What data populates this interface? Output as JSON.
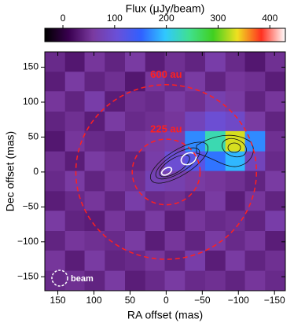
{
  "chart_data": {
    "type": "heatmap",
    "colorbar_label": "Flux (μJy/beam)",
    "clim": [
      -35,
      430
    ],
    "cticks": [
      0,
      100,
      200,
      300,
      400
    ],
    "colormap": [
      "#000000",
      "#3a0050",
      "#7a3aa0",
      "#6a50d8",
      "#3060ff",
      "#30c8ff",
      "#40e090",
      "#40d020",
      "#f0e020",
      "#ff3020",
      "#ffffff"
    ],
    "x_label": "RA offset (mas)",
    "y_label": "Dec offset (mas)",
    "xlim": [
      168,
      -165
    ],
    "ylim": [
      -170,
      172
    ],
    "xticks": [
      150,
      100,
      50,
      0,
      {
        "value": -50,
        "label": "−50"
      },
      {
        "value": -100,
        "label": "−100"
      },
      {
        "value": -150,
        "label": "−150"
      }
    ],
    "yticks": [
      {
        "value": -150,
        "label": "−150"
      },
      {
        "value": -100,
        "label": "−100"
      },
      {
        "value": -50,
        "label": "−50"
      },
      0,
      50,
      100,
      150
    ],
    "x": [
      154,
      126,
      99,
      71,
      43,
      15,
      -12,
      -40,
      -68,
      -96,
      -123,
      -151
    ],
    "y": [
      158,
      129,
      101,
      72,
      44,
      15,
      -13,
      -42,
      -70,
      -99,
      -127,
      -156
    ],
    "z": [
      [
        45,
        30,
        55,
        40,
        60,
        35,
        50,
        40,
        65,
        45,
        30,
        50
      ],
      [
        35,
        60,
        40,
        50,
        30,
        55,
        45,
        60,
        40,
        55,
        50,
        35
      ],
      [
        55,
        40,
        65,
        35,
        50,
        45,
        60,
        50,
        70,
        60,
        40,
        55
      ],
      [
        40,
        50,
        35,
        60,
        45,
        50,
        55,
        80,
        100,
        90,
        60,
        40
      ],
      [
        30,
        55,
        45,
        40,
        55,
        60,
        70,
        170,
        230,
        330,
        170,
        50
      ],
      [
        50,
        35,
        60,
        50,
        40,
        65,
        100,
        120,
        160,
        190,
        80,
        45
      ],
      [
        45,
        60,
        40,
        55,
        50,
        75,
        70,
        60,
        55,
        50,
        40,
        60
      ],
      [
        35,
        45,
        55,
        40,
        65,
        45,
        50,
        40,
        60,
        35,
        55,
        40
      ],
      [
        60,
        40,
        35,
        55,
        40,
        60,
        35,
        55,
        45,
        50,
        40,
        65
      ],
      [
        40,
        55,
        50,
        45,
        60,
        35,
        55,
        40,
        60,
        45,
        55,
        35
      ],
      [
        55,
        35,
        60,
        40,
        45,
        55,
        40,
        65,
        35,
        60,
        40,
        50
      ],
      [
        45,
        50,
        40,
        60,
        35,
        45,
        60,
        45,
        50,
        40,
        55,
        45
      ]
    ],
    "circles": [
      {
        "label": "600 au",
        "x": 0,
        "y": 0,
        "r": 125,
        "color": "#ff2020"
      },
      {
        "label": "225 au",
        "x": 0,
        "y": 0,
        "r": 47,
        "color": "#ff2020"
      }
    ],
    "beam_label": "beam"
  }
}
